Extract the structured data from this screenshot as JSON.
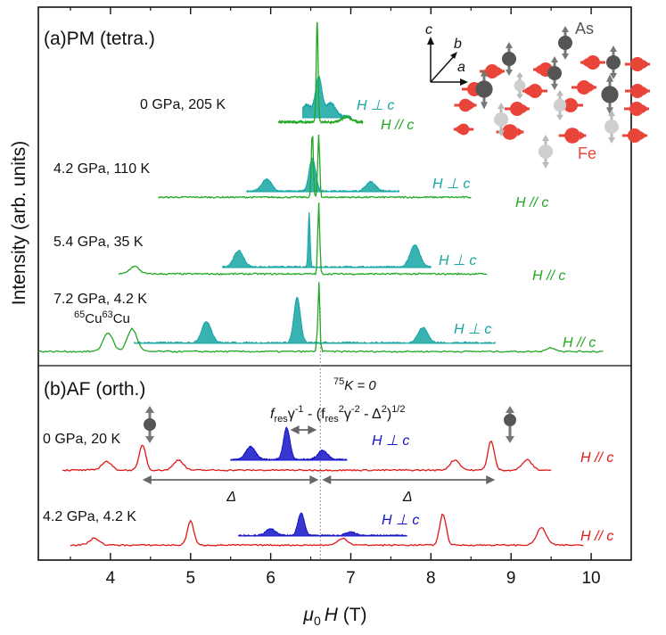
{
  "chart_data": {
    "type": "line",
    "xlabel": {
      "symbol": "μ",
      "sub": "0",
      "var": "H",
      "unit": " (T)"
    },
    "ylabel": "Intensity (arb. units)",
    "xlim": [
      3.1,
      10.5
    ],
    "x_ticks": [
      4,
      5,
      6,
      7,
      8,
      9,
      10
    ],
    "panels": [
      {
        "label": "(a)PM (tetra.)",
        "traces": [
          {
            "label": "0 GPa, 205 K",
            "orientation": "H ⊥ c",
            "color": "#16a5a5",
            "x_range": [
              6.4,
              7.0
            ],
            "peaks": [
              [
                6.45,
                0.12
              ],
              [
                6.6,
                0.4
              ],
              [
                6.75,
                0.14
              ]
            ]
          },
          {
            "orientation": "H // c",
            "color": "#22a722",
            "x_range": [
              6.1,
              7.15
            ],
            "peaks": [
              [
                6.58,
                1.0
              ],
              [
                6.95,
                0.05
              ]
            ]
          },
          {
            "label": "4.2 GPa, 110 K",
            "orientation": "H ⊥ c",
            "color": "#16a5a5",
            "x_range": [
              5.7,
              7.6
            ],
            "peaks": [
              [
                5.95,
                0.18
              ],
              [
                6.52,
                0.5
              ],
              [
                7.25,
                0.14
              ]
            ]
          },
          {
            "orientation": "H // c",
            "color": "#22a722",
            "x_range": [
              4.6,
              8.5
            ],
            "peaks": [
              [
                6.52,
                0.92
              ],
              [
                6.6,
                0.85
              ]
            ]
          },
          {
            "label": "5.4 GPa, 35 K",
            "orientation": "H ⊥ c",
            "color": "#16a5a5",
            "x_range": [
              5.4,
              8.0
            ],
            "peaks": [
              [
                5.6,
                0.22
              ],
              [
                6.48,
                0.75
              ],
              [
                7.8,
                0.3
              ]
            ]
          },
          {
            "orientation": "H // c",
            "color": "#22a722",
            "x_range": [
              4.1,
              8.7
            ],
            "peaks": [
              [
                4.3,
                0.1
              ],
              [
                6.6,
                0.95
              ]
            ]
          },
          {
            "label": "7.2 GPa, 4.2 K",
            "orientation": "H ⊥ c",
            "color": "#16a5a5",
            "x_range": [
              4.3,
              8.8
            ],
            "peaks": [
              [
                5.2,
                0.28
              ],
              [
                6.33,
                0.6
              ],
              [
                7.9,
                0.2
              ]
            ]
          },
          {
            "orientation": "H // c",
            "color": "#22a722",
            "x_range": [
              3.1,
              10.15
            ],
            "peaks": [
              [
                3.97,
                0.25
              ],
              [
                4.27,
                0.3
              ],
              [
                6.6,
                0.95
              ],
              [
                9.5,
                0.05
              ]
            ]
          }
        ]
      },
      {
        "label": "(b)AF (orth.)",
        "traces": [
          {
            "label": "0 GPa, 20 K",
            "orientation": "H ⊥ c",
            "color": "#1414c8",
            "x_range": [
              5.5,
              6.95
            ],
            "peaks": [
              [
                5.75,
                0.2
              ],
              [
                6.2,
                0.5
              ],
              [
                6.65,
                0.14
              ]
            ]
          },
          {
            "orientation": "H // c",
            "color": "#e01818",
            "x_range": [
              3.4,
              9.5
            ],
            "peaks": [
              [
                3.95,
                0.12
              ],
              [
                4.4,
                0.35
              ],
              [
                4.85,
                0.14
              ],
              [
                8.3,
                0.14
              ],
              [
                8.75,
                0.4
              ],
              [
                9.2,
                0.14
              ]
            ]
          },
          {
            "label": "4.2 GPa, 4.2 K",
            "orientation": "H ⊥ c",
            "color": "#1414c8",
            "x_range": [
              5.6,
              7.7
            ],
            "peaks": [
              [
                6.0,
                0.1
              ],
              [
                6.38,
                0.35
              ],
              [
                7.0,
                0.05
              ]
            ]
          },
          {
            "orientation": "H // c",
            "color": "#e01818",
            "x_range": [
              3.5,
              9.9
            ],
            "peaks": [
              [
                3.8,
                0.1
              ],
              [
                5.0,
                0.35
              ],
              [
                6.9,
                0.1
              ],
              [
                8.15,
                0.45
              ],
              [
                9.38,
                0.25
              ]
            ]
          }
        ]
      }
    ],
    "annotations": {
      "isotope_label": [
        "65",
        "Cu",
        "63",
        "Cu"
      ],
      "k_line": {
        "x": 6.62,
        "label": [
          "75",
          "K = 0"
        ]
      },
      "formula": [
        "f",
        "res",
        "γ",
        "-1",
        " - (f",
        "res",
        "2",
        "γ",
        "-2",
        " - Δ",
        "2",
        ")",
        "1/2"
      ],
      "delta_label": "Δ",
      "delta_left": [
        4.4,
        6.62
      ],
      "delta_right": [
        6.62,
        8.8
      ],
      "shift_arrow": [
        6.2,
        6.62
      ]
    },
    "inset": {
      "axes": [
        "c",
        "b",
        "a"
      ],
      "labels": [
        "As",
        "Fe"
      ]
    }
  },
  "colors": {
    "pm_perp": "#16a5a5",
    "pm_par": "#22a722",
    "af_perp": "#1414c8",
    "af_par": "#e01818",
    "fe": "#e8443a",
    "as_dark": "#555555",
    "as_light": "#c9c9c9"
  }
}
